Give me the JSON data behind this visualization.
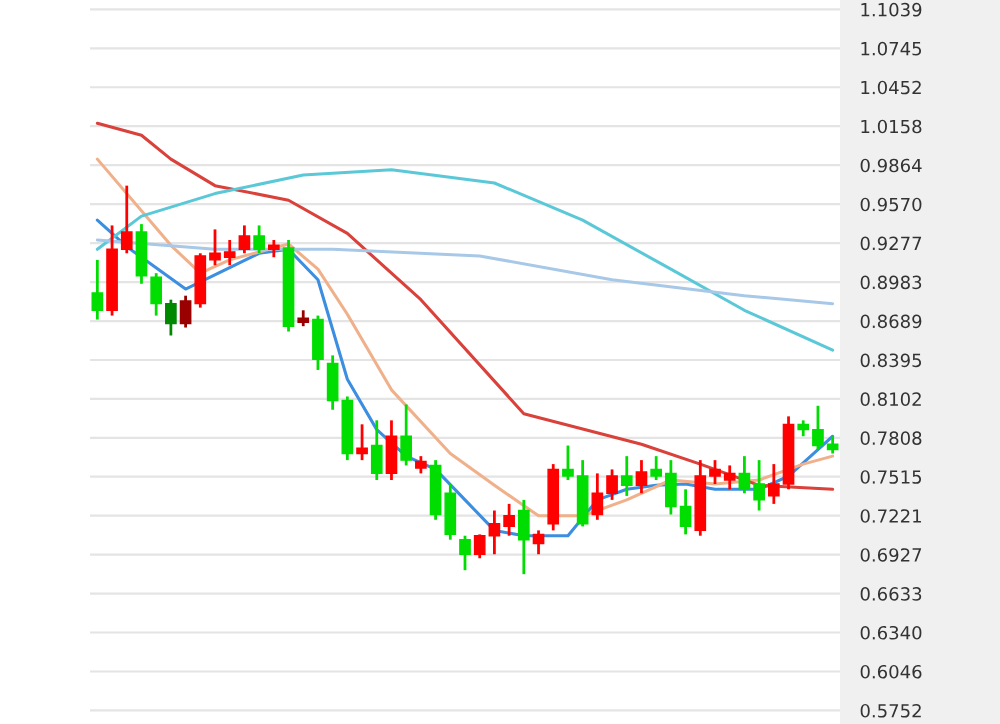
{
  "chart_data": {
    "type": "candlestick",
    "categories": [
      null,
      null,
      null,
      null,
      null,
      null,
      null,
      null,
      null,
      null,
      null,
      null,
      null,
      null,
      null,
      null,
      null,
      null,
      null,
      null,
      null,
      null,
      null,
      null,
      null,
      null,
      null,
      null,
      null,
      null,
      null,
      null,
      null,
      null,
      null,
      null,
      null,
      null,
      null,
      null,
      null,
      null,
      null,
      null,
      null,
      null,
      null,
      null,
      null,
      null,
      null
    ],
    "ohlc": [
      [
        0.89,
        0.915,
        0.87,
        0.877
      ],
      [
        0.877,
        0.941,
        0.873,
        0.923
      ],
      [
        0.923,
        0.971,
        0.92,
        0.936
      ],
      [
        0.936,
        0.942,
        0.897,
        0.903
      ],
      [
        0.902,
        0.905,
        0.873,
        0.882
      ],
      [
        0.882,
        0.885,
        0.858,
        0.867
      ],
      [
        0.867,
        0.888,
        0.864,
        0.884
      ],
      [
        0.882,
        0.92,
        0.879,
        0.918
      ],
      [
        0.915,
        0.938,
        0.911,
        0.92
      ],
      [
        0.917,
        0.93,
        0.911,
        0.921
      ],
      [
        0.923,
        0.941,
        0.92,
        0.933
      ],
      [
        0.933,
        0.941,
        0.92,
        0.923
      ],
      [
        0.923,
        0.93,
        0.917,
        0.926
      ],
      [
        0.924,
        0.93,
        0.861,
        0.865
      ],
      [
        0.868,
        0.877,
        0.865,
        0.871
      ],
      [
        0.87,
        0.873,
        0.832,
        0.84
      ],
      [
        0.837,
        0.843,
        0.802,
        0.809
      ],
      [
        0.809,
        0.812,
        0.764,
        0.769
      ],
      [
        0.769,
        0.791,
        0.764,
        0.773
      ],
      [
        0.775,
        0.794,
        0.749,
        0.754
      ],
      [
        0.754,
        0.794,
        0.749,
        0.782
      ],
      [
        0.782,
        0.806,
        0.76,
        0.764
      ],
      [
        0.758,
        0.767,
        0.754,
        0.763
      ],
      [
        0.76,
        0.764,
        0.719,
        0.723
      ],
      [
        0.739,
        0.746,
        0.704,
        0.708
      ],
      [
        0.704,
        0.707,
        0.681,
        0.693
      ],
      [
        0.693,
        0.708,
        0.69,
        0.707
      ],
      [
        0.707,
        0.726,
        0.693,
        0.716
      ],
      [
        0.714,
        0.731,
        0.707,
        0.722
      ],
      [
        0.726,
        0.734,
        0.678,
        0.704
      ],
      [
        0.701,
        0.711,
        0.693,
        0.708
      ],
      [
        0.716,
        0.761,
        0.711,
        0.757
      ],
      [
        0.757,
        0.775,
        0.749,
        0.752
      ],
      [
        0.752,
        0.764,
        0.714,
        0.716
      ],
      [
        0.723,
        0.754,
        0.719,
        0.739
      ],
      [
        0.739,
        0.757,
        0.734,
        0.752
      ],
      [
        0.752,
        0.767,
        0.737,
        0.745
      ],
      [
        0.745,
        0.764,
        0.739,
        0.755
      ],
      [
        0.757,
        0.767,
        0.749,
        0.752
      ],
      [
        0.754,
        0.764,
        0.723,
        0.729
      ],
      [
        0.729,
        0.742,
        0.708,
        0.714
      ],
      [
        0.711,
        0.764,
        0.707,
        0.752
      ],
      [
        0.752,
        0.764,
        0.746,
        0.757
      ],
      [
        0.749,
        0.76,
        0.742,
        0.754
      ],
      [
        0.754,
        0.767,
        0.739,
        0.742
      ],
      [
        0.746,
        0.764,
        0.726,
        0.734
      ],
      [
        0.737,
        0.761,
        0.731,
        0.746
      ],
      [
        0.746,
        0.797,
        0.742,
        0.791
      ],
      [
        0.791,
        0.794,
        0.782,
        0.787
      ],
      [
        0.787,
        0.805,
        0.772,
        0.775
      ],
      [
        0.776,
        0.782,
        0.769,
        0.772
      ]
    ],
    "colors": [
      "#00dd00",
      "#ff0000",
      "#ff0000",
      "#00dd00",
      "#00dd00",
      "#008800",
      "#990000",
      "#ff0000",
      "#ff0000",
      "#ff0000",
      "#ff0000",
      "#00dd00",
      "#ff0000",
      "#00dd00",
      "#990000",
      "#00dd00",
      "#00dd00",
      "#00dd00",
      "#ff0000",
      "#00dd00",
      "#ff0000",
      "#00dd00",
      "#ff0000",
      "#00dd00",
      "#00dd00",
      "#00dd00",
      "#ff0000",
      "#ff0000",
      "#ff0000",
      "#00dd00",
      "#ff0000",
      "#ff0000",
      "#00dd00",
      "#00dd00",
      "#ff0000",
      "#ff0000",
      "#00dd00",
      "#ff0000",
      "#00dd00",
      "#00dd00",
      "#00dd00",
      "#ff0000",
      "#ff0000",
      "#ff0000",
      "#00dd00",
      "#00dd00",
      "#ff0000",
      "#ff0000",
      "#00dd00",
      "#00dd00",
      "#00dd00"
    ],
    "series": [
      {
        "type": "line",
        "color": "#3c8ee0",
        "values": [
          0.945,
          null,
          0.925,
          null,
          null,
          null,
          0.893,
          null,
          null,
          null,
          null,
          0.92,
          null,
          0.923,
          null,
          0.9,
          null,
          0.825,
          null,
          0.787,
          null,
          0.767,
          null,
          0.757,
          null,
          0.734,
          null,
          0.711,
          null,
          0.707,
          null,
          null,
          0.707,
          null,
          0.734,
          null,
          0.742,
          null,
          0.745,
          null,
          0.746,
          null,
          0.742,
          null,
          null,
          0.742,
          null,
          0.752,
          null,
          0.772,
          0.782
        ]
      },
      {
        "type": "line",
        "color": "#f0b08a",
        "values": [
          0.991,
          null,
          null,
          null,
          null,
          0.926,
          null,
          0.905,
          null,
          0.915,
          null,
          null,
          null,
          0.927,
          null,
          0.908,
          null,
          0.874,
          null,
          null,
          0.817,
          null,
          null,
          null,
          0.769,
          null,
          null,
          0.745,
          null,
          null,
          0.722,
          null,
          null,
          0.722,
          null,
          null,
          0.734,
          null,
          null,
          0.749,
          null,
          null,
          0.746,
          null,
          null,
          0.749,
          null,
          null,
          0.761,
          null,
          0.767
        ]
      },
      {
        "type": "line",
        "color": "#d9413a",
        "values": [
          1.018,
          null,
          null,
          1.009,
          null,
          0.991,
          null,
          null,
          0.971,
          null,
          null,
          null,
          null,
          0.96,
          null,
          null,
          null,
          0.935,
          null,
          null,
          null,
          null,
          0.885,
          null,
          null,
          null,
          null,
          null,
          null,
          0.799,
          null,
          null,
          null,
          null,
          null,
          null,
          null,
          0.776,
          null,
          null,
          null,
          0.761,
          null,
          null,
          null,
          0.745,
          null,
          null,
          null,
          null,
          0.742
        ]
      },
      {
        "type": "line",
        "color": "#5bc8d8",
        "values": [
          0.923,
          null,
          null,
          0.948,
          null,
          null,
          null,
          null,
          0.965,
          null,
          null,
          null,
          null,
          null,
          0.979,
          null,
          null,
          null,
          null,
          null,
          0.983,
          null,
          null,
          null,
          null,
          null,
          null,
          0.973,
          null,
          null,
          null,
          null,
          null,
          0.945,
          null,
          null,
          null,
          null,
          null,
          0.908,
          null,
          null,
          null,
          null,
          0.877,
          null,
          null,
          null,
          null,
          null,
          0.847
        ]
      },
      {
        "type": "line",
        "color": "#a8c8e8",
        "values": [
          0.93,
          null,
          null,
          null,
          null,
          null,
          null,
          null,
          0.923,
          null,
          null,
          null,
          null,
          null,
          null,
          null,
          0.923,
          null,
          null,
          null,
          null,
          null,
          null,
          null,
          null,
          null,
          0.918,
          null,
          null,
          null,
          null,
          null,
          null,
          null,
          null,
          0.9,
          null,
          null,
          null,
          null,
          null,
          null,
          null,
          null,
          0.888,
          null,
          null,
          null,
          null,
          null,
          0.882
        ]
      }
    ],
    "ylim": [
      0.565,
      1.111
    ],
    "yticks": [
      1.1039,
      1.0745,
      1.0452,
      1.0158,
      0.9864,
      {
        "value": 0.957,
        "label": "0.9570"
      },
      0.9277,
      0.8983,
      0.8689,
      0.8395,
      0.8102,
      0.7808,
      0.7515,
      0.7221,
      0.6927,
      0.6633,
      {
        "value": 0.634,
        "label": "0.6340"
      },
      0.6046,
      0.5752
    ],
    "tick_labels": "y",
    "grid": "y"
  }
}
